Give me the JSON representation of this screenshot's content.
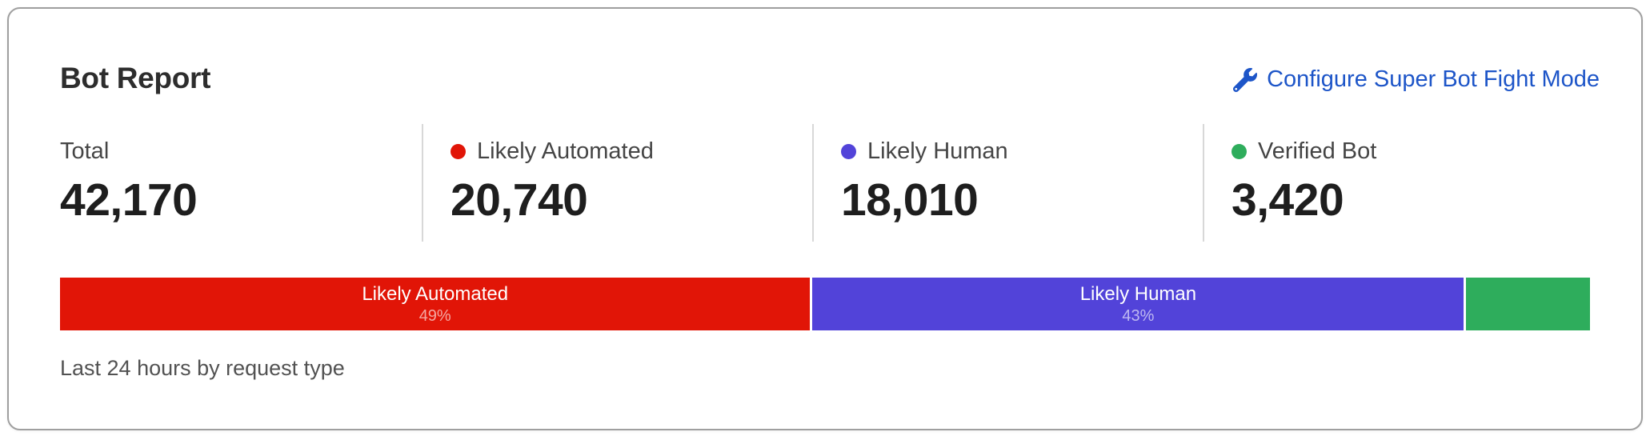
{
  "card": {
    "title": "Bot Report",
    "action": {
      "label": "Configure Super Bot Fight Mode",
      "icon": "wrench-icon",
      "color": "#1d55c8"
    }
  },
  "stats": [
    {
      "label": "Total",
      "value": "42,170",
      "color": null
    },
    {
      "label": "Likely Automated",
      "value": "20,740",
      "color": "#e11507"
    },
    {
      "label": "Likely Human",
      "value": "18,010",
      "color": "#5243d9"
    },
    {
      "label": "Verified Bot",
      "value": "3,420",
      "color": "#2ead5c"
    }
  ],
  "chart_data": {
    "type": "bar",
    "stacked": true,
    "orientation": "horizontal",
    "title": "Bot Report",
    "total": 42170,
    "segments": [
      {
        "label": "Likely Automated",
        "value": 20740,
        "percent_label": "49%",
        "color": "#e11507",
        "show_label": true
      },
      {
        "label": "Likely Human",
        "value": 18010,
        "percent_label": "43%",
        "color": "#5243d9",
        "show_label": true
      },
      {
        "label": "Verified Bot",
        "value": 3420,
        "percent_label": "8%",
        "color": "#2ead5c",
        "show_label": false
      }
    ],
    "footnote": "Last 24 hours by request type"
  },
  "footer": {
    "caption": "Last 24 hours by request type"
  }
}
